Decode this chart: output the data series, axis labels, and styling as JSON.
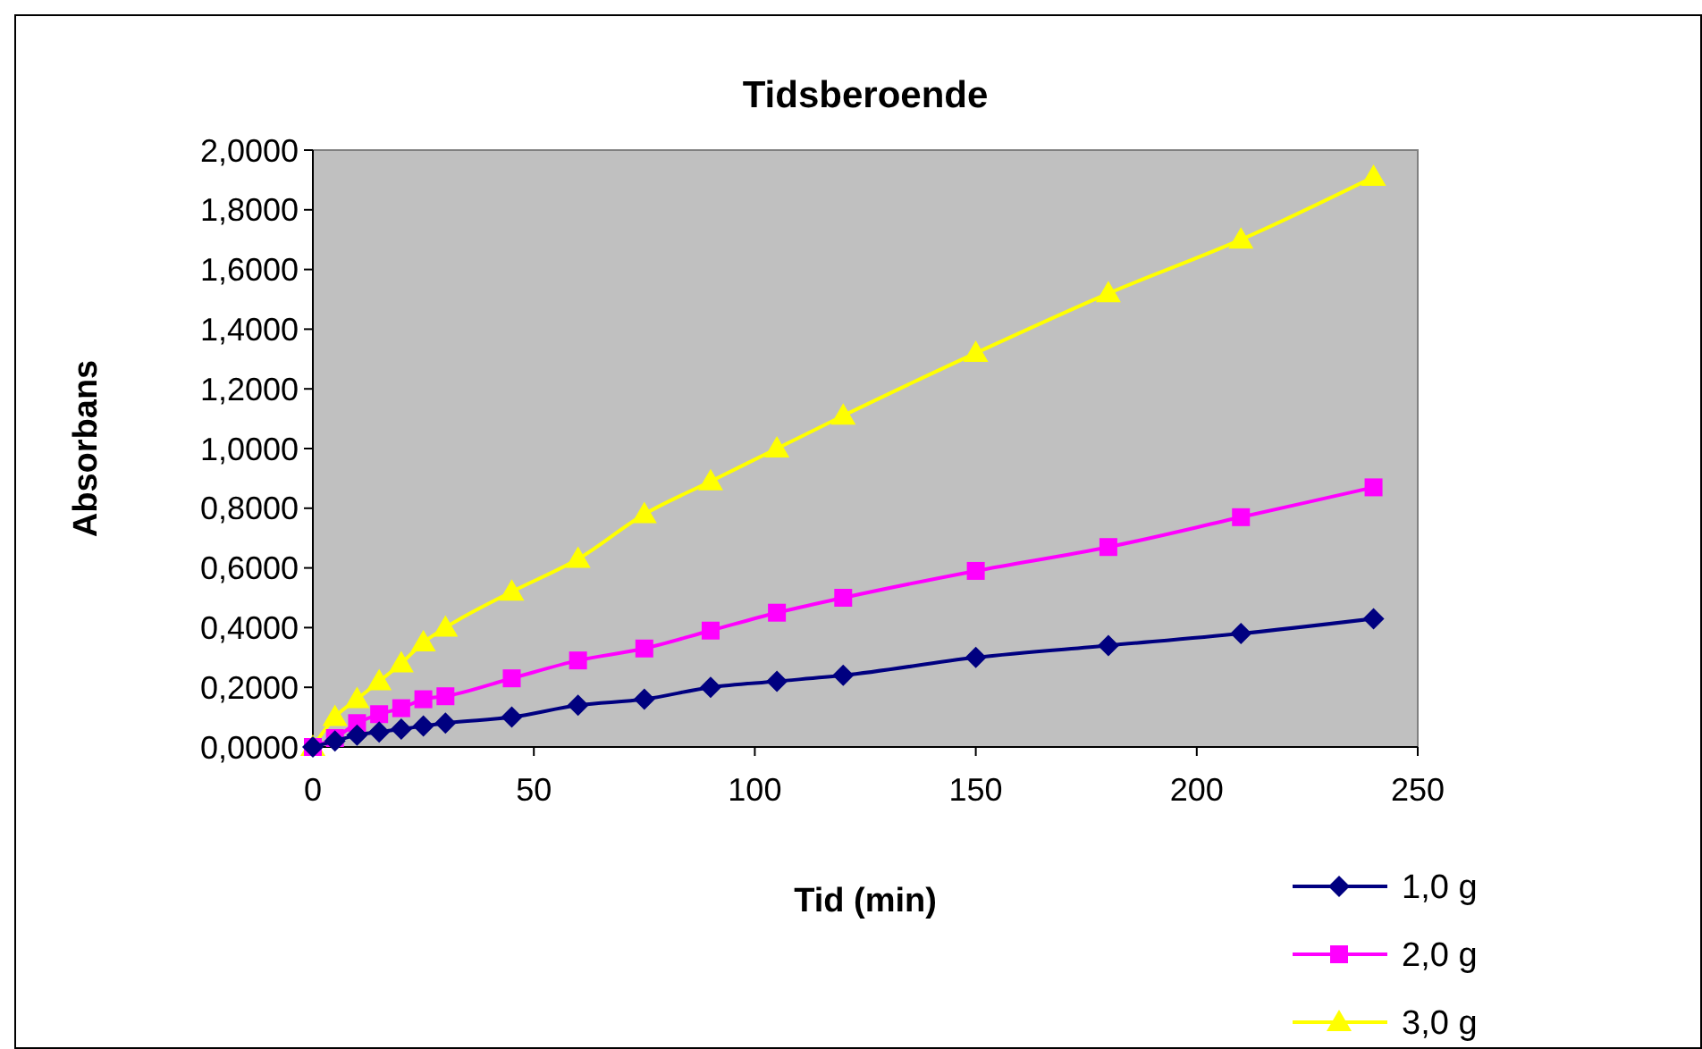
{
  "chart_data": {
    "type": "line",
    "title": "Tidsberoende",
    "xlabel": "Tid (min)",
    "ylabel": "Absorbans",
    "x": [
      0,
      5,
      10,
      15,
      20,
      25,
      30,
      45,
      60,
      75,
      90,
      105,
      120,
      150,
      180,
      210,
      240
    ],
    "series": [
      {
        "name": "1,0 g",
        "color": "#000080",
        "marker": "diamond",
        "values": [
          0,
          0.02,
          0.04,
          0.05,
          0.06,
          0.07,
          0.08,
          0.1,
          0.14,
          0.16,
          0.2,
          0.22,
          0.24,
          0.3,
          0.34,
          0.38,
          0.43
        ]
      },
      {
        "name": "2,0 g",
        "color": "#ff00ff",
        "marker": "square",
        "values": [
          0,
          0.03,
          0.08,
          0.11,
          0.13,
          0.16,
          0.17,
          0.23,
          0.29,
          0.33,
          0.39,
          0.45,
          0.5,
          0.59,
          0.67,
          0.77,
          0.87
        ]
      },
      {
        "name": "3,0 g",
        "color": "#ffff00",
        "marker": "triangle",
        "values": [
          0,
          0.1,
          0.16,
          0.22,
          0.28,
          0.35,
          0.4,
          0.52,
          0.63,
          0.78,
          0.89,
          1.0,
          1.11,
          1.32,
          1.52,
          1.7,
          1.91
        ]
      }
    ],
    "xlim": [
      0,
      250
    ],
    "xticks": [
      0,
      50,
      100,
      150,
      200,
      250
    ],
    "ylim": [
      0,
      2
    ],
    "yticks": [
      {
        "value": 0,
        "label": "0,0000"
      },
      {
        "value": 0.2,
        "label": "0,2000"
      },
      {
        "value": 0.4,
        "label": "0,4000"
      },
      {
        "value": 0.6,
        "label": "0,6000"
      },
      {
        "value": 0.8,
        "label": "0,8000"
      },
      {
        "value": 1,
        "label": "1,0000"
      },
      {
        "value": 1.2,
        "label": "1,2000"
      },
      {
        "value": 1.4,
        "label": "1,4000"
      },
      {
        "value": 1.6,
        "label": "1,6000"
      },
      {
        "value": 1.8,
        "label": "1,8000"
      },
      {
        "value": 2,
        "label": "2,0000"
      }
    ],
    "grid": false,
    "legend": "bottom right"
  }
}
